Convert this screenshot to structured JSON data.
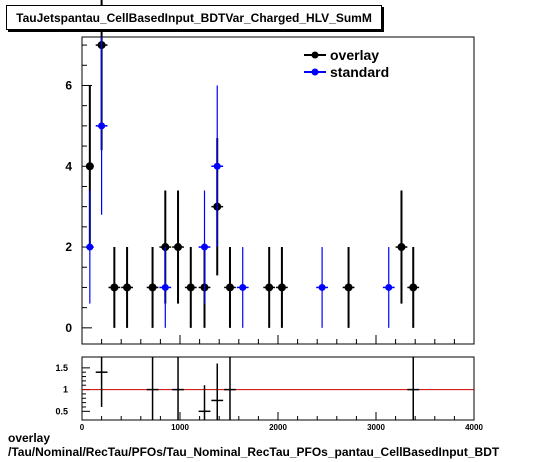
{
  "title": "TauJetspantau_CellBasedInput_BDTVar_Charged_HLV_SumM",
  "footer": {
    "line1": "overlay",
    "line2": "/Tau/Nominal/RecTau/PFOs/Tau_Nominal_RecTau_PFOs_pantau_CellBasedInput_BDT"
  },
  "colors": {
    "overlay": "#000000",
    "standard": "#0000ff",
    "ratio_line": "#cc0000"
  },
  "chart_data": [
    {
      "type": "scatter",
      "xlim": [
        0,
        4000
      ],
      "ylim": [
        -0.4,
        7.2
      ],
      "yticks": [
        0,
        2,
        4,
        6
      ],
      "legend_position": "top-right",
      "series": [
        {
          "name": "overlay",
          "points": [
            {
              "x": 80,
              "y": 4,
              "xerr": 40,
              "yerr": 2
            },
            {
              "x": 200,
              "y": 7,
              "xerr": 60,
              "yerr": 2.6
            },
            {
              "x": 330,
              "y": 1,
              "xerr": 60,
              "yerr": 1
            },
            {
              "x": 460,
              "y": 1,
              "xerr": 60,
              "yerr": 1
            },
            {
              "x": 720,
              "y": 1,
              "xerr": 60,
              "yerr": 1
            },
            {
              "x": 850,
              "y": 2,
              "xerr": 60,
              "yerr": 1.4
            },
            {
              "x": 980,
              "y": 2,
              "xerr": 60,
              "yerr": 1.4
            },
            {
              "x": 1110,
              "y": 1,
              "xerr": 60,
              "yerr": 1
            },
            {
              "x": 1250,
              "y": 1,
              "xerr": 60,
              "yerr": 1
            },
            {
              "x": 1380,
              "y": 3,
              "xerr": 60,
              "yerr": 1.7
            },
            {
              "x": 1510,
              "y": 1,
              "xerr": 60,
              "yerr": 1
            },
            {
              "x": 1910,
              "y": 1,
              "xerr": 60,
              "yerr": 1
            },
            {
              "x": 2040,
              "y": 1,
              "xerr": 60,
              "yerr": 1
            },
            {
              "x": 2720,
              "y": 1,
              "xerr": 60,
              "yerr": 1
            },
            {
              "x": 3260,
              "y": 2,
              "xerr": 60,
              "yerr": 1.4
            },
            {
              "x": 3380,
              "y": 1,
              "xerr": 60,
              "yerr": 1
            }
          ]
        },
        {
          "name": "standard",
          "points": [
            {
              "x": 80,
              "y": 2,
              "xerr": 40,
              "yerr": 1.4
            },
            {
              "x": 200,
              "y": 5,
              "xerr": 60,
              "yerr": 2.2
            },
            {
              "x": 850,
              "y": 1,
              "xerr": 60,
              "yerr": 1
            },
            {
              "x": 1250,
              "y": 2,
              "xerr": 60,
              "yerr": 1.4
            },
            {
              "x": 1380,
              "y": 4,
              "xerr": 60,
              "yerr": 2
            },
            {
              "x": 1640,
              "y": 1,
              "xerr": 60,
              "yerr": 1
            },
            {
              "x": 2450,
              "y": 1,
              "xerr": 60,
              "yerr": 1
            },
            {
              "x": 3130,
              "y": 1,
              "xerr": 60,
              "yerr": 1
            }
          ]
        }
      ]
    },
    {
      "type": "scatter",
      "xlim": [
        0,
        4000
      ],
      "ylim": [
        0.3,
        1.75
      ],
      "xticks": [
        0,
        1000,
        2000,
        3000,
        4000
      ],
      "yticks": [
        0.5,
        1,
        1.5
      ],
      "reference_line": 1,
      "points": [
        {
          "x": 200,
          "y": 1.4,
          "xerr": 60,
          "yerr": 0.8
        },
        {
          "x": 720,
          "y": 1,
          "xerr": 60,
          "yerr": 1
        },
        {
          "x": 980,
          "y": 1,
          "xerr": 60,
          "yerr": 1
        },
        {
          "x": 1250,
          "y": 0.5,
          "xerr": 60,
          "yerr": 0.6
        },
        {
          "x": 1380,
          "y": 0.75,
          "xerr": 60,
          "yerr": 0.85
        },
        {
          "x": 1510,
          "y": 1,
          "xerr": 60,
          "yerr": 1
        },
        {
          "x": 3380,
          "y": 1,
          "xerr": 60,
          "yerr": 1
        }
      ]
    }
  ]
}
